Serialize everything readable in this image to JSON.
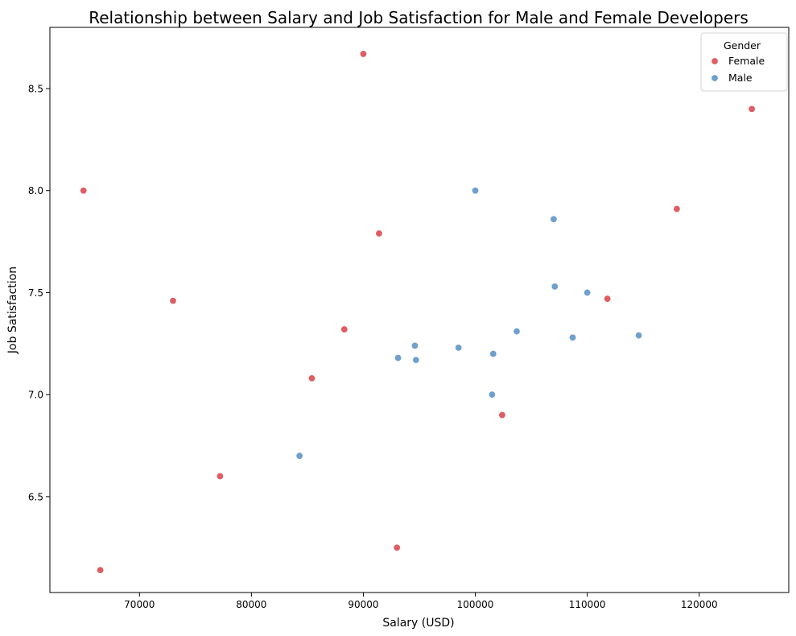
{
  "chart_data": {
    "type": "scatter",
    "title": "Relationship between Salary and Job Satisfaction for Male and Female Developers",
    "xlabel": "Salary (USD)",
    "ylabel": "Job Satisfaction",
    "xlim": [
      62000,
      128000
    ],
    "ylim": [
      6.03,
      8.8
    ],
    "xticks": [
      70000,
      80000,
      90000,
      100000,
      110000,
      120000
    ],
    "xtick_labels": [
      "70000",
      "80000",
      "90000",
      "100000",
      "110000",
      "120000"
    ],
    "yticks": [
      6.5,
      7.0,
      7.5,
      8.0,
      8.5
    ],
    "ytick_labels": [
      "6.5",
      "7.0",
      "7.5",
      "8.0",
      "8.5"
    ],
    "grid": false,
    "legend": {
      "title": "Gender",
      "position": "top-right"
    },
    "series": [
      {
        "name": "Female",
        "color": "#e05c63",
        "points": [
          [
            90000,
            8.67
          ],
          [
            124700,
            8.4
          ],
          [
            65000,
            8.0
          ],
          [
            118000,
            7.91
          ],
          [
            91400,
            7.79
          ],
          [
            73000,
            7.46
          ],
          [
            111800,
            7.47
          ],
          [
            88300,
            7.32
          ],
          [
            85400,
            7.08
          ],
          [
            102400,
            6.9
          ],
          [
            77200,
            6.6
          ],
          [
            93000,
            6.25
          ],
          [
            66500,
            6.14
          ]
        ]
      },
      {
        "name": "Male",
        "color": "#6fa0cc",
        "points": [
          [
            100000,
            8.0
          ],
          [
            107000,
            7.86
          ],
          [
            107100,
            7.53
          ],
          [
            110000,
            7.5
          ],
          [
            103700,
            7.31
          ],
          [
            108700,
            7.28
          ],
          [
            114600,
            7.29
          ],
          [
            94600,
            7.24
          ],
          [
            98500,
            7.23
          ],
          [
            101600,
            7.2
          ],
          [
            93100,
            7.18
          ],
          [
            94700,
            7.17
          ],
          [
            101500,
            7.0
          ],
          [
            84300,
            6.7
          ]
        ]
      }
    ]
  }
}
